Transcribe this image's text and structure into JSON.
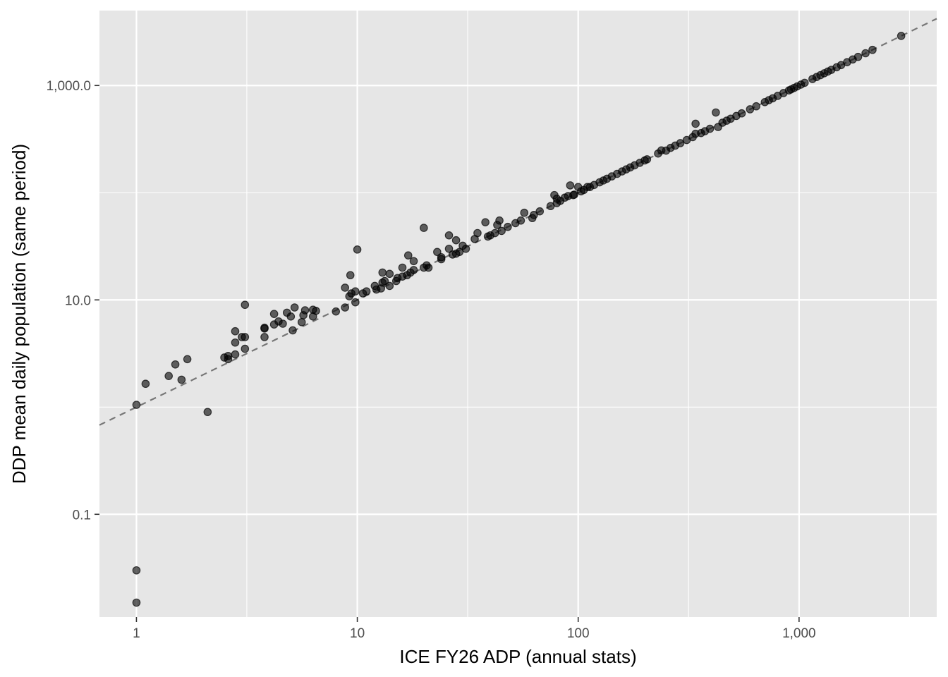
{
  "chart_data": {
    "type": "scatter",
    "title": "",
    "xlabel": "ICE FY26 ADP (annual stats)",
    "ylabel": "DDP mean daily population (same period)",
    "x_scale": "log10",
    "y_scale": "log10",
    "xlim": [
      0.68,
      4200
    ],
    "ylim": [
      0.011,
      5000
    ],
    "x_ticks": [
      {
        "value": 1,
        "label": "1"
      },
      {
        "value": 10,
        "label": "10"
      },
      {
        "value": 100,
        "label": "100"
      },
      {
        "value": 1000,
        "label": "1,000"
      }
    ],
    "y_ticks": [
      {
        "value": 0.1,
        "label": "0.1"
      },
      {
        "value": 10,
        "label": "10.0"
      },
      {
        "value": 1000,
        "label": "1,000.0"
      }
    ],
    "reference_line": {
      "style": "dashed",
      "slope": 1,
      "intercept": 0
    },
    "grid": true,
    "legend": "none",
    "colors": {
      "panel": "#e6e6e6",
      "grid": "#ffffff",
      "points": "#000000",
      "reference_line": "#777777"
    },
    "points": [
      [
        1.0,
        0.03
      ],
      [
        1.0,
        0.015
      ],
      [
        1.0,
        1.05
      ],
      [
        1.1,
        1.65
      ],
      [
        1.4,
        1.95
      ],
      [
        1.5,
        2.5
      ],
      [
        1.6,
        1.8
      ],
      [
        1.7,
        2.8
      ],
      [
        2.1,
        0.9
      ],
      [
        2.5,
        2.9
      ],
      [
        2.6,
        2.8
      ],
      [
        2.6,
        3.0
      ],
      [
        2.8,
        3.1
      ],
      [
        2.8,
        4.0
      ],
      [
        2.8,
        5.1
      ],
      [
        3.0,
        4.5
      ],
      [
        3.1,
        3.5
      ],
      [
        3.1,
        4.5
      ],
      [
        3.1,
        9.0
      ],
      [
        3.8,
        4.5
      ],
      [
        3.8,
        5.4
      ],
      [
        3.8,
        5.5
      ],
      [
        4.2,
        5.9
      ],
      [
        4.2,
        7.4
      ],
      [
        4.4,
        6.3
      ],
      [
        4.6,
        6.0
      ],
      [
        4.8,
        7.6
      ],
      [
        5.0,
        7.0
      ],
      [
        5.1,
        5.2
      ],
      [
        5.2,
        8.5
      ],
      [
        5.6,
        6.2
      ],
      [
        5.7,
        7.2
      ],
      [
        5.8,
        8.0
      ],
      [
        6.3,
        7.0
      ],
      [
        6.3,
        8.1
      ],
      [
        6.5,
        7.9
      ],
      [
        8.0,
        7.8
      ],
      [
        8.8,
        8.5
      ],
      [
        8.8,
        13.0
      ],
      [
        9.2,
        10.8
      ],
      [
        9.3,
        17.0
      ],
      [
        9.4,
        11.5
      ],
      [
        9.8,
        9.5
      ],
      [
        9.8,
        12.0
      ],
      [
        10.0,
        29.5
      ],
      [
        10.6,
        11.5
      ],
      [
        11.0,
        12.0
      ],
      [
        12.0,
        13.5
      ],
      [
        12.2,
        12.5
      ],
      [
        12.8,
        12.8
      ],
      [
        13.0,
        14.5
      ],
      [
        13.0,
        18.0
      ],
      [
        13.3,
        15.0
      ],
      [
        14.0,
        17.5
      ],
      [
        14.0,
        13.5
      ],
      [
        15.0,
        15.0
      ],
      [
        15.2,
        16.0
      ],
      [
        16.0,
        16.5
      ],
      [
        16.0,
        20.0
      ],
      [
        16.8,
        17.0
      ],
      [
        17.0,
        26.0
      ],
      [
        17.4,
        18.0
      ],
      [
        18.0,
        23.0
      ],
      [
        18.0,
        19.0
      ],
      [
        20.0,
        20.0
      ],
      [
        20.0,
        47.0
      ],
      [
        20.6,
        21.0
      ],
      [
        21.0,
        20.0
      ],
      [
        23.0,
        28.0
      ],
      [
        24.0,
        24.0
      ],
      [
        24.0,
        25.0
      ],
      [
        26.0,
        30.0
      ],
      [
        26.0,
        40.0
      ],
      [
        27.0,
        26.5
      ],
      [
        28.0,
        36.0
      ],
      [
        28.0,
        27.0
      ],
      [
        29.0,
        28.0
      ],
      [
        30.0,
        32.0
      ],
      [
        31.0,
        30.0
      ],
      [
        34.0,
        37.0
      ],
      [
        35.0,
        42.0
      ],
      [
        38.0,
        53.0
      ],
      [
        39.0,
        39.0
      ],
      [
        40.0,
        40.0
      ],
      [
        42.0,
        42.0
      ],
      [
        43.0,
        50.0
      ],
      [
        44.0,
        55.0
      ],
      [
        45.0,
        44.0
      ],
      [
        48.0,
        48.0
      ],
      [
        52.0,
        52.0
      ],
      [
        55.0,
        55.0
      ],
      [
        57.0,
        65.0
      ],
      [
        62.0,
        58.0
      ],
      [
        63.0,
        62.0
      ],
      [
        67.0,
        67.0
      ],
      [
        75.0,
        75.0
      ],
      [
        78.0,
        95.0
      ],
      [
        80.0,
        80.0
      ],
      [
        80.0,
        88.0
      ],
      [
        83.0,
        84.0
      ],
      [
        87.0,
        90.0
      ],
      [
        90.0,
        93.0
      ],
      [
        92.0,
        117.0
      ],
      [
        95.0,
        95.0
      ],
      [
        96.0,
        96.0
      ],
      [
        100.0,
        113.0
      ],
      [
        103.0,
        103.0
      ],
      [
        106.0,
        106.0
      ],
      [
        110.0,
        113.0
      ],
      [
        113.0,
        113.0
      ],
      [
        118.0,
        118.0
      ],
      [
        125.0,
        125.0
      ],
      [
        130.0,
        130.0
      ],
      [
        135.0,
        135.0
      ],
      [
        142.0,
        142.0
      ],
      [
        150.0,
        150.0
      ],
      [
        158.0,
        158.0
      ],
      [
        165.0,
        165.0
      ],
      [
        172.0,
        172.0
      ],
      [
        180.0,
        180.0
      ],
      [
        190.0,
        190.0
      ],
      [
        200.0,
        200.0
      ],
      [
        205.0,
        205.0
      ],
      [
        230.0,
        232.0
      ],
      [
        238.0,
        248.0
      ],
      [
        250.0,
        247.0
      ],
      [
        262.0,
        262.0
      ],
      [
        275.0,
        275.0
      ],
      [
        290.0,
        290.0
      ],
      [
        310.0,
        310.0
      ],
      [
        330.0,
        330.0
      ],
      [
        340.0,
        355.0
      ],
      [
        340.0,
        440.0
      ],
      [
        360.0,
        360.0
      ],
      [
        375.0,
        375.0
      ],
      [
        395.0,
        395.0
      ],
      [
        420.0,
        560.0
      ],
      [
        430.0,
        410.0
      ],
      [
        450.0,
        450.0
      ],
      [
        470.0,
        470.0
      ],
      [
        490.0,
        490.0
      ],
      [
        520.0,
        520.0
      ],
      [
        550.0,
        550.0
      ],
      [
        600.0,
        600.0
      ],
      [
        640.0,
        640.0
      ],
      [
        700.0,
        700.0
      ],
      [
        730.0,
        730.0
      ],
      [
        760.0,
        760.0
      ],
      [
        800.0,
        800.0
      ],
      [
        850.0,
        850.0
      ],
      [
        900.0,
        900.0
      ],
      [
        920.0,
        920.0
      ],
      [
        950.0,
        950.0
      ],
      [
        980.0,
        980.0
      ],
      [
        1020.0,
        1020.0
      ],
      [
        1060.0,
        1060.0
      ],
      [
        1150.0,
        1150.0
      ],
      [
        1200.0,
        1200.0
      ],
      [
        1250.0,
        1250.0
      ],
      [
        1300.0,
        1300.0
      ],
      [
        1350.0,
        1350.0
      ],
      [
        1400.0,
        1400.0
      ],
      [
        1480.0,
        1480.0
      ],
      [
        1550.0,
        1550.0
      ],
      [
        1650.0,
        1650.0
      ],
      [
        1750.0,
        1750.0
      ],
      [
        1850.0,
        1850.0
      ],
      [
        2000.0,
        2000.0
      ],
      [
        2150.0,
        2150.0
      ],
      [
        2900.0,
        2900.0
      ]
    ]
  }
}
